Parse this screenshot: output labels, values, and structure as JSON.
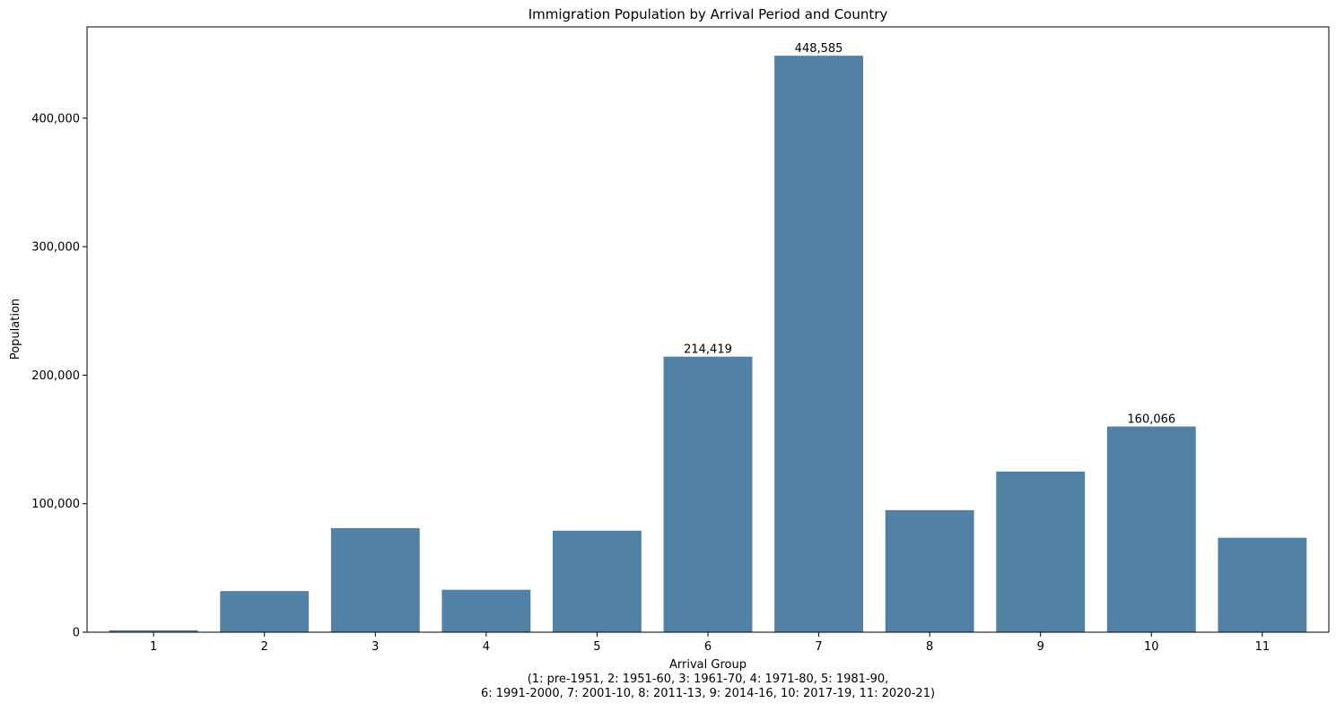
{
  "chart_data": {
    "type": "bar",
    "title": "Immigration Population by Arrival Period and Country",
    "xlabel": "Arrival Group",
    "xlabel_note_line1": "(1: pre-1951, 2: 1951-60, 3: 1961-70, 4: 1971-80, 5: 1981-90,",
    "xlabel_note_line2": "6: 1991-2000, 7: 2001-10, 8: 2011-13, 9: 2014-16, 10: 2017-19, 11: 2020-21)",
    "ylabel": "Population",
    "categories": [
      "1",
      "2",
      "3",
      "4",
      "5",
      "6",
      "7",
      "8",
      "9",
      "10",
      "11"
    ],
    "values": [
      1500,
      32000,
      81000,
      33000,
      79000,
      214419,
      448585,
      95000,
      125000,
      160066,
      73500
    ],
    "data_labels": [
      {
        "index": 5,
        "text": "214,419"
      },
      {
        "index": 6,
        "text": "448,585"
      },
      {
        "index": 9,
        "text": "160,066"
      }
    ],
    "yticks": [
      0,
      100000,
      200000,
      300000,
      400000
    ],
    "ytick_labels": [
      "0",
      "100,000",
      "200,000",
      "300,000",
      "400,000"
    ],
    "ylim": [
      0,
      471014
    ],
    "bar_color": "#5182a6",
    "grid": false,
    "legend": "none"
  }
}
